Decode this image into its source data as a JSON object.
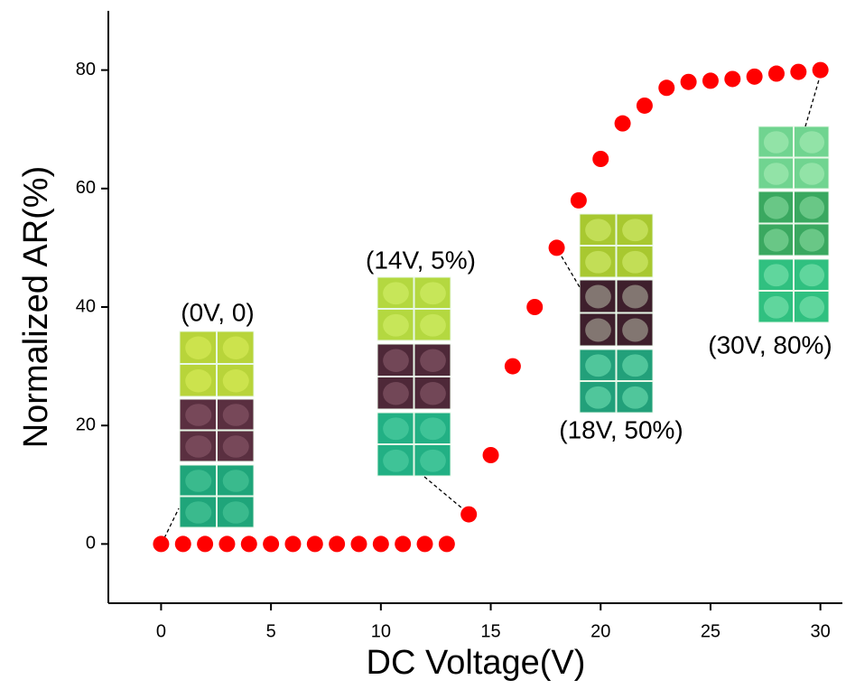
{
  "chart_data": {
    "type": "scatter",
    "x_label": "DC Voltage(V)",
    "y_label": "Normalized AR(%)",
    "x": [
      0,
      1,
      2,
      3,
      4,
      5,
      6,
      7,
      8,
      9,
      10,
      11,
      12,
      13,
      14,
      15,
      16,
      17,
      18,
      19,
      20,
      21,
      22,
      23,
      24,
      25,
      26,
      27,
      28,
      29,
      30
    ],
    "values": [
      0,
      0,
      0,
      0,
      0,
      0,
      0,
      0,
      0,
      0,
      0,
      0,
      0,
      0,
      5,
      15,
      30,
      40,
      50,
      58,
      65,
      71,
      74,
      77,
      78,
      78.2,
      78.5,
      78.9,
      79.4,
      79.7,
      80
    ],
    "color": "#ff0000",
    "xlim": [
      -2.4,
      31
    ],
    "xticks": [
      0,
      5,
      10,
      15,
      20,
      25,
      30
    ],
    "ylim": [
      -10,
      90
    ],
    "yticks": [
      0,
      20,
      40,
      60,
      80
    ],
    "annotations": [
      "(0V, 0)",
      "(14V, 5%)",
      "(18V, 50%)",
      "(30V, 80%)"
    ]
  }
}
